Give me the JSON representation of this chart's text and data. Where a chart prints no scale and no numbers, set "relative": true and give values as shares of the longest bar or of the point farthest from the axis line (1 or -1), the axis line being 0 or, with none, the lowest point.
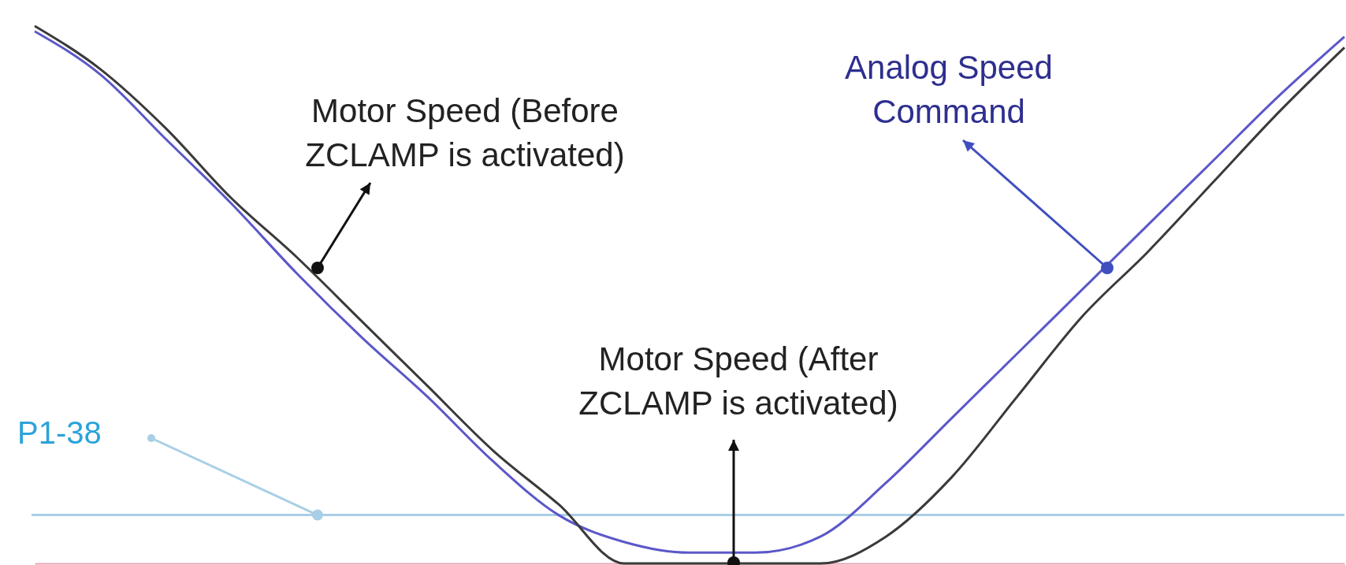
{
  "chart_data": {
    "type": "line",
    "relative": true,
    "grid": false,
    "marker": "none",
    "line_style": "solid",
    "categories": [
      null,
      null,
      null,
      null,
      null,
      null,
      null,
      null,
      null,
      null,
      null,
      null,
      null,
      null,
      null,
      null,
      null,
      null,
      null,
      null,
      null
    ],
    "series": [
      {
        "color": "#5b57c9",
        "values": [
          0.99,
          0.91,
          0.79,
          0.67,
          0.54,
          0.42,
          0.31,
          0.19,
          0.09,
          0.04,
          0.02,
          0.02,
          0.05,
          0.15,
          0.27,
          0.39,
          0.51,
          0.63,
          0.75,
          0.87,
          0.98
        ]
      },
      {
        "color": "#3a3a3a",
        "values": [
          1,
          0.92,
          0.81,
          0.68,
          0.57,
          0.45,
          0.33,
          0.21,
          0.11,
          0,
          0,
          0,
          0,
          0.05,
          0.16,
          0.31,
          0.46,
          0.58,
          0.71,
          0.84,
          0.96
        ]
      }
    ],
    "ref_lines": [
      {
        "axis": "y",
        "value": 0.09,
        "label": "P1-38",
        "color": "#a9cfe6"
      }
    ],
    "annotations": [
      "Motor Speed (Before ZCLAMP is activated)",
      "Analog Speed Command",
      "Motor Speed (After ZCLAMP is activated)"
    ]
  }
}
